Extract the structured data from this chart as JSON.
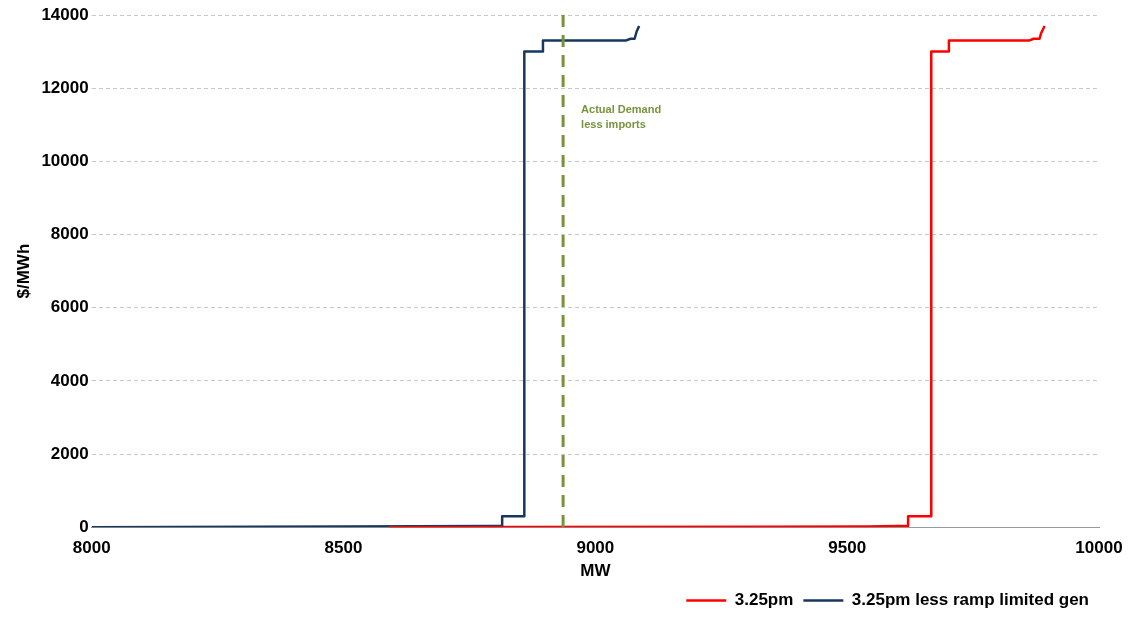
{
  "chart_data": {
    "type": "line",
    "xlabel": "MW",
    "ylabel": "$/MWh",
    "series": [
      {
        "name": "3.25pm",
        "color": "#ff0000",
        "x": [
          8590,
          9540,
          9600,
          9621,
          9621,
          9667,
          9667,
          9702,
          9702,
          9861,
          9870,
          9882,
          9885,
          9892
        ],
        "values": [
          0,
          20,
          30,
          30,
          300,
          300,
          13000,
          13000,
          13300,
          13300,
          13350,
          13350,
          13500,
          13700
        ]
      },
      {
        "name": "3.25pm less ramp limited gen",
        "color": "#17375e",
        "x": [
          8000,
          8500,
          8790,
          8815,
          8815,
          8859,
          8859,
          8896,
          8896,
          9060,
          9070,
          9078,
          9082,
          9087
        ],
        "values": [
          0,
          20,
          30,
          30,
          300,
          300,
          13000,
          13000,
          13300,
          13300,
          13350,
          13350,
          13550,
          13700
        ]
      }
    ],
    "xlim": [
      8000,
      10000
    ],
    "xticks": [
      8000,
      8500,
      9000,
      9500,
      10000
    ],
    "ylim": [
      0,
      14000
    ],
    "yticks": [
      0,
      2000,
      4000,
      6000,
      8000,
      10000,
      12000,
      14000
    ],
    "ref_lines": [
      {
        "axis": "x",
        "value": 8936,
        "label": "Actual Demand less imports",
        "color": "#77933c",
        "line_style": "dashed"
      }
    ],
    "grid": "y",
    "legend": "bottom right",
    "marker": "none",
    "line_style": "solid"
  }
}
